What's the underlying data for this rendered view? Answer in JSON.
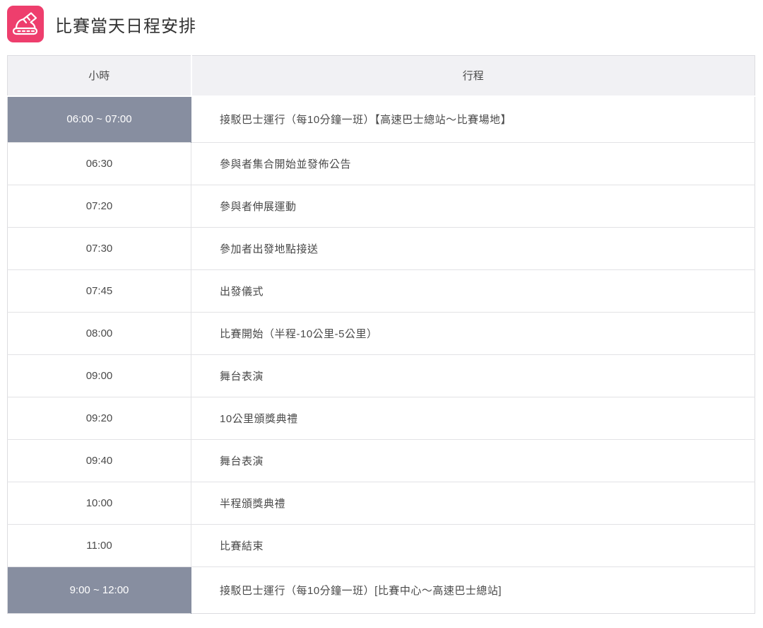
{
  "colors": {
    "icon_bg": "#EE3E6D",
    "highlight_bg": "#878EA0",
    "highlight_text": "#FFFFFF",
    "header_bg": "#F1F1F4",
    "border": "#DCDCE0",
    "text": "#4A4A4A",
    "title_text": "#333333"
  },
  "header": {
    "title": "比賽當天日程安排",
    "icon": "running-shoe-icon"
  },
  "table": {
    "headers": [
      "小時",
      "行程"
    ],
    "rows": [
      {
        "time": "06:00 ~ 07:00",
        "event": "接駁巴士運行（每10分鐘一班）【高速巴士總站～比賽場地】",
        "highlight": true
      },
      {
        "time": "06:30",
        "event": "參與者集合開始並發佈公告",
        "highlight": false
      },
      {
        "time": "07:20",
        "event": "參與者伸展運動",
        "highlight": false
      },
      {
        "time": "07:30",
        "event": "參加者出發地點接送",
        "highlight": false
      },
      {
        "time": "07:45",
        "event": "出發儀式",
        "highlight": false
      },
      {
        "time": "08:00",
        "event": "比賽開始（半程-10公里-5公里）",
        "highlight": false
      },
      {
        "time": "09:00",
        "event": "舞台表演",
        "highlight": false
      },
      {
        "time": "09:20",
        "event": "10公里頒獎典禮",
        "highlight": false
      },
      {
        "time": "09:40",
        "event": "舞台表演",
        "highlight": false
      },
      {
        "time": "10:00",
        "event": "半程頒獎典禮",
        "highlight": false
      },
      {
        "time": "11:00",
        "event": "比賽結束",
        "highlight": false
      },
      {
        "time": "9:00 ~ 12:00",
        "event": "接駁巴士運行（每10分鐘一班）[比賽中心～高速巴士總站]",
        "highlight": true
      }
    ]
  }
}
